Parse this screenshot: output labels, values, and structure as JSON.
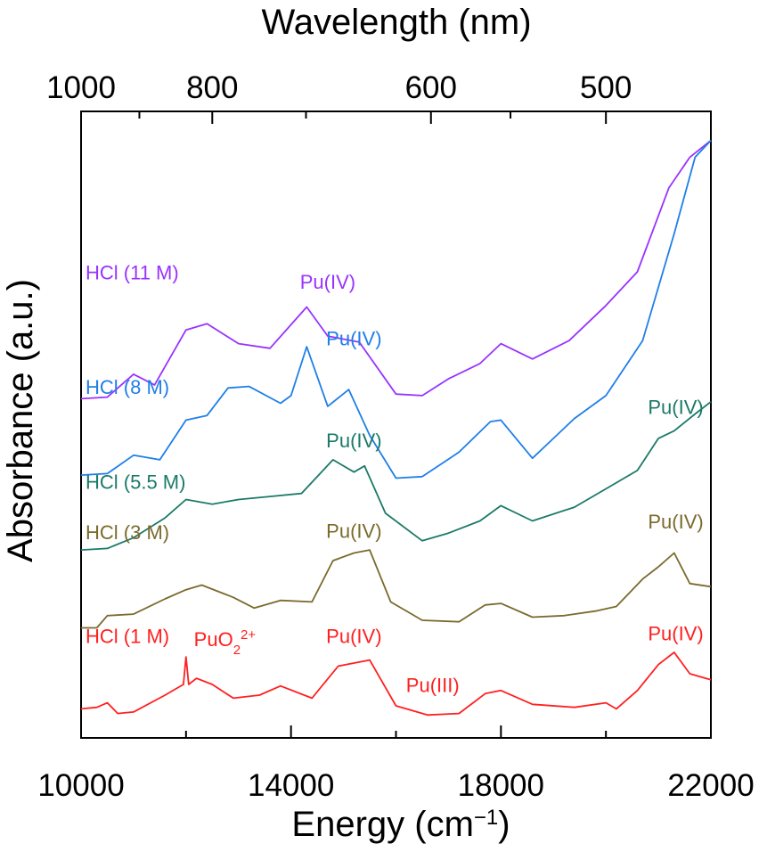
{
  "chart_data": {
    "type": "line",
    "xlabel": "Energy (cm",
    "xlabel_sup": "−1",
    "xlabel_end": ")",
    "ylabel": "Absorbance (a.u.)",
    "top_xlabel": "Wavelength (nm)",
    "xlim": [
      10000,
      22000
    ],
    "x_ticks": [
      10000,
      14000,
      18000,
      22000
    ],
    "x_tick_labels": [
      "10000",
      "14000",
      "18000",
      "22000"
    ],
    "x_minor_ticks": [
      12000,
      16000,
      20000
    ],
    "top_ticks_nm": [
      1000,
      800,
      600,
      500
    ],
    "top_tick_labels": [
      "1000",
      "800",
      "600",
      "500"
    ],
    "top_minor_ticks_nm": [
      900,
      700,
      550,
      450
    ],
    "y_ticks": "none",
    "grid": false,
    "series": [
      {
        "name": "HCl (11 M)",
        "color": "#9933ff",
        "points": [
          [
            10000,
            0.97
          ],
          [
            10500,
            0.98
          ],
          [
            11000,
            1.13
          ],
          [
            11400,
            1.06
          ],
          [
            12000,
            1.42
          ],
          [
            12400,
            1.46
          ],
          [
            13000,
            1.33
          ],
          [
            13600,
            1.3
          ],
          [
            14300,
            1.57
          ],
          [
            14700,
            1.38
          ],
          [
            15300,
            1.34
          ],
          [
            16000,
            1.0
          ],
          [
            16500,
            0.99
          ],
          [
            17000,
            1.1
          ],
          [
            17600,
            1.2
          ],
          [
            18000,
            1.33
          ],
          [
            18600,
            1.23
          ],
          [
            19300,
            1.35
          ],
          [
            20000,
            1.58
          ],
          [
            20600,
            1.8
          ],
          [
            21200,
            2.35
          ],
          [
            21600,
            2.55
          ],
          [
            22000,
            2.66
          ]
        ]
      },
      {
        "name": "HCl (8 M)",
        "color": "#1f7fe8",
        "points": [
          [
            10000,
            0.47
          ],
          [
            10500,
            0.48
          ],
          [
            11000,
            0.6
          ],
          [
            11500,
            0.57
          ],
          [
            12000,
            0.83
          ],
          [
            12400,
            0.86
          ],
          [
            12800,
            1.04
          ],
          [
            13200,
            1.05
          ],
          [
            13800,
            0.94
          ],
          [
            14000,
            0.99
          ],
          [
            14300,
            1.31
          ],
          [
            14700,
            0.92
          ],
          [
            15100,
            1.03
          ],
          [
            15500,
            0.73
          ],
          [
            16000,
            0.45
          ],
          [
            16500,
            0.46
          ],
          [
            17200,
            0.62
          ],
          [
            17800,
            0.82
          ],
          [
            18000,
            0.83
          ],
          [
            18600,
            0.58
          ],
          [
            19400,
            0.84
          ],
          [
            20000,
            0.99
          ],
          [
            20700,
            1.35
          ],
          [
            21300,
            2.05
          ],
          [
            21700,
            2.55
          ],
          [
            22000,
            2.66
          ]
        ]
      },
      {
        "name": "HCl (5.5 M)",
        "color": "#1b7a68",
        "points": [
          [
            10000,
            -0.02
          ],
          [
            10500,
            -0.01
          ],
          [
            11000,
            0.06
          ],
          [
            11600,
            0.19
          ],
          [
            12000,
            0.31
          ],
          [
            12500,
            0.28
          ],
          [
            13000,
            0.31
          ],
          [
            13600,
            0.33
          ],
          [
            14200,
            0.35
          ],
          [
            14800,
            0.57
          ],
          [
            15200,
            0.49
          ],
          [
            15400,
            0.53
          ],
          [
            15800,
            0.22
          ],
          [
            16500,
            0.04
          ],
          [
            17000,
            0.09
          ],
          [
            17600,
            0.17
          ],
          [
            18000,
            0.27
          ],
          [
            18600,
            0.17
          ],
          [
            19400,
            0.26
          ],
          [
            20000,
            0.38
          ],
          [
            20600,
            0.5
          ],
          [
            21000,
            0.71
          ],
          [
            21300,
            0.76
          ],
          [
            21700,
            0.87
          ],
          [
            22000,
            0.95
          ]
        ]
      },
      {
        "name": "HCl (3 M)",
        "color": "#7a6a2c",
        "points": [
          [
            10000,
            -0.53
          ],
          [
            10300,
            -0.53
          ],
          [
            10500,
            -0.45
          ],
          [
            11000,
            -0.44
          ],
          [
            11600,
            -0.34
          ],
          [
            12000,
            -0.28
          ],
          [
            12300,
            -0.25
          ],
          [
            12900,
            -0.33
          ],
          [
            13300,
            -0.4
          ],
          [
            13800,
            -0.35
          ],
          [
            14400,
            -0.36
          ],
          [
            14800,
            -0.09
          ],
          [
            15200,
            -0.04
          ],
          [
            15500,
            -0.02
          ],
          [
            15900,
            -0.36
          ],
          [
            16500,
            -0.48
          ],
          [
            17200,
            -0.49
          ],
          [
            17700,
            -0.38
          ],
          [
            18000,
            -0.37
          ],
          [
            18600,
            -0.46
          ],
          [
            19200,
            -0.45
          ],
          [
            19800,
            -0.42
          ],
          [
            20200,
            -0.39
          ],
          [
            20700,
            -0.21
          ],
          [
            21000,
            -0.13
          ],
          [
            21300,
            -0.04
          ],
          [
            21600,
            -0.24
          ],
          [
            22000,
            -0.26
          ]
        ]
      },
      {
        "name": "HCl (1 M)",
        "color": "#ff2020",
        "points": [
          [
            10000,
            -1.06
          ],
          [
            10300,
            -1.05
          ],
          [
            10500,
            -1.02
          ],
          [
            10700,
            -1.09
          ],
          [
            11000,
            -1.08
          ],
          [
            11600,
            -0.97
          ],
          [
            11950,
            -0.9
          ],
          [
            12000,
            -0.72
          ],
          [
            12050,
            -0.9
          ],
          [
            12200,
            -0.86
          ],
          [
            12500,
            -0.9
          ],
          [
            12900,
            -0.99
          ],
          [
            13400,
            -0.97
          ],
          [
            13800,
            -0.91
          ],
          [
            14400,
            -0.99
          ],
          [
            14900,
            -0.78
          ],
          [
            15200,
            -0.76
          ],
          [
            15500,
            -0.74
          ],
          [
            16000,
            -1.04
          ],
          [
            16600,
            -1.1
          ],
          [
            17200,
            -1.09
          ],
          [
            17700,
            -0.96
          ],
          [
            18000,
            -0.94
          ],
          [
            18600,
            -1.03
          ],
          [
            19400,
            -1.05
          ],
          [
            20000,
            -1.02
          ],
          [
            20200,
            -1.06
          ],
          [
            20600,
            -0.94
          ],
          [
            21000,
            -0.77
          ],
          [
            21300,
            -0.69
          ],
          [
            21600,
            -0.83
          ],
          [
            22000,
            -0.87
          ]
        ]
      }
    ],
    "annotations": [
      {
        "name": "label-11m",
        "text": "HCl (11 M)",
        "x": 10000,
        "y": 1.75,
        "color": "#9933ff",
        "anchor": "start"
      },
      {
        "name": "label-11m-puiv",
        "text": "Pu(IV)",
        "x": 14700,
        "y": 1.69,
        "color": "#9933ff",
        "anchor": "middle"
      },
      {
        "name": "label-8m",
        "text": "HCl (8 M)",
        "x": 10000,
        "y": 1.0,
        "color": "#1f7fe8",
        "anchor": "start"
      },
      {
        "name": "label-8m-puiv",
        "text": "Pu(IV)",
        "x": 15200,
        "y": 1.32,
        "color": "#1f7fe8",
        "anchor": "middle"
      },
      {
        "name": "label-55m",
        "text": "HCl (5.5 M)",
        "x": 10000,
        "y": 0.38,
        "color": "#1b7a68",
        "anchor": "start"
      },
      {
        "name": "label-55m-puiv",
        "text": "Pu(IV)",
        "x": 15200,
        "y": 0.65,
        "color": "#1b7a68",
        "anchor": "middle"
      },
      {
        "name": "label-55m-puiv2",
        "text": "Pu(IV)",
        "x": 21330,
        "y": 0.87,
        "color": "#1b7a68",
        "anchor": "middle"
      },
      {
        "name": "label-3m",
        "text": "HCl (3 M)",
        "x": 10000,
        "y": 0.05,
        "color": "#7a6a2c",
        "anchor": "start"
      },
      {
        "name": "label-3m-puiv",
        "text": "Pu(IV)",
        "x": 15200,
        "y": 0.06,
        "color": "#7a6a2c",
        "anchor": "middle"
      },
      {
        "name": "label-3m-puiv2",
        "text": "Pu(IV)",
        "x": 21330,
        "y": 0.12,
        "color": "#7a6a2c",
        "anchor": "middle"
      },
      {
        "name": "label-1m",
        "text": "HCl (1 M)",
        "x": 10000,
        "y": -0.63,
        "color": "#ff2020",
        "anchor": "start"
      },
      {
        "name": "label-1m-puiv",
        "text": "Pu(IV)",
        "x": 15200,
        "y": -0.63,
        "color": "#ff2020",
        "anchor": "middle"
      },
      {
        "name": "label-1m-puiii",
        "text": "Pu(III)",
        "x": 16700,
        "y": -0.95,
        "color": "#ff2020",
        "anchor": "middle"
      },
      {
        "name": "label-1m-puiv2",
        "text": "Pu(IV)",
        "x": 21330,
        "y": -0.61,
        "color": "#ff2020",
        "anchor": "middle"
      }
    ],
    "puo2_label": {
      "base": "PuO",
      "sub": "2",
      "sup": "2+",
      "x": 12150,
      "y": -0.65,
      "color": "#ff2020"
    }
  }
}
